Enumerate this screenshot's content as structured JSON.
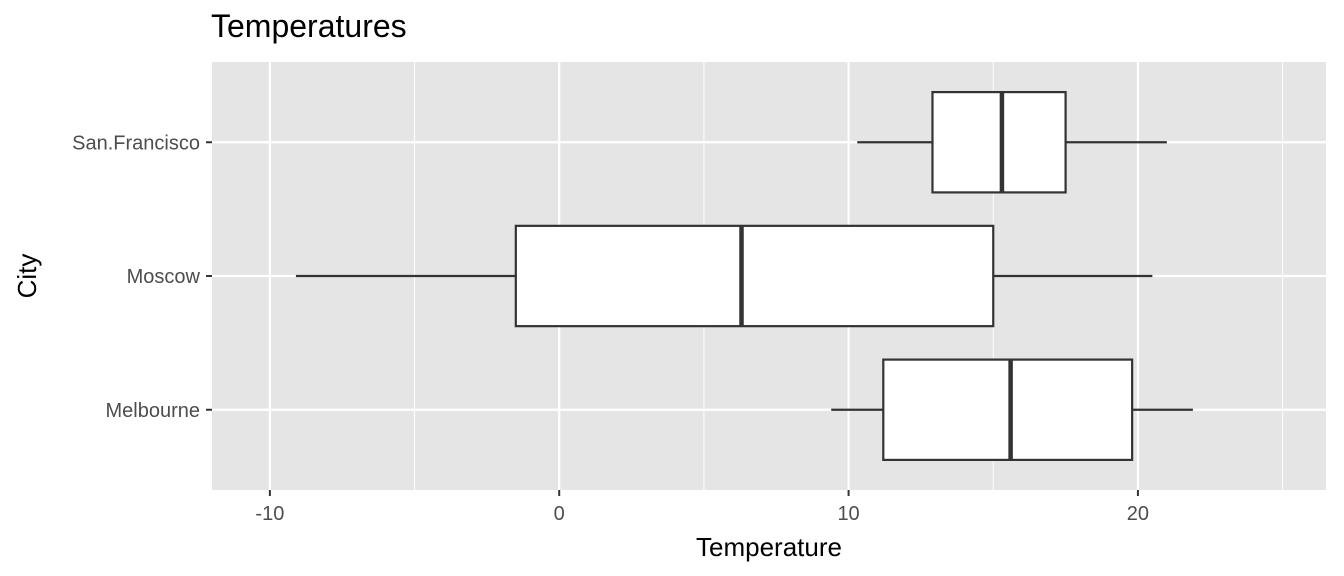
{
  "chart_data": {
    "type": "boxplot",
    "orientation": "horizontal",
    "title": "Temperatures",
    "xlabel": "Temperature",
    "ylabel": "City",
    "xlim": [
      -12,
      26.5
    ],
    "x_ticks": [
      -10,
      0,
      10,
      20
    ],
    "x_minor_ticks": [
      -5,
      5,
      15,
      25
    ],
    "categories": [
      "Melbourne",
      "Moscow",
      "San.Francisco"
    ],
    "boxes": [
      {
        "category": "Melbourne",
        "min": 9.4,
        "q1": 11.2,
        "median": 15.6,
        "q3": 19.8,
        "max": 21.9
      },
      {
        "category": "Moscow",
        "min": -9.1,
        "q1": -1.5,
        "median": 6.3,
        "q3": 15.0,
        "max": 20.5
      },
      {
        "category": "San.Francisco",
        "min": 10.3,
        "q1": 12.9,
        "median": 15.3,
        "q3": 17.5,
        "max": 21.0
      }
    ],
    "grid": true,
    "colors": {
      "panel": "#e5e5e5",
      "grid": "#ffffff",
      "box_fill": "#ffffff",
      "box_stroke": "#333333"
    }
  }
}
